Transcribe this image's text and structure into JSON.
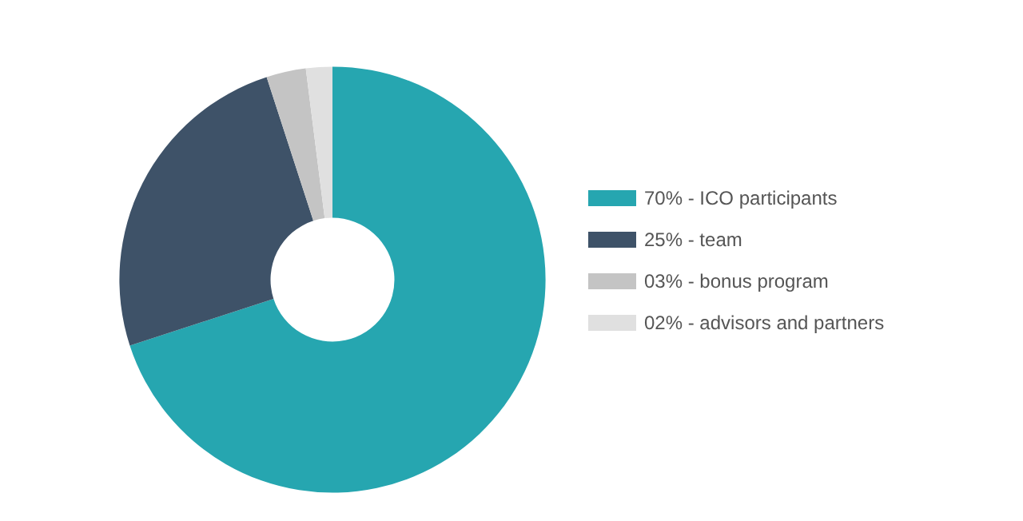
{
  "chart_data": {
    "type": "donut",
    "categories": [
      "70% - ICO participants",
      "25% - team",
      "03% - bonus program",
      "02% - advisors and partners"
    ],
    "values": [
      70,
      25,
      3,
      2
    ],
    "colors": [
      "#26a6b0",
      "#3e5268",
      "#c4c4c4",
      "#e0e0e0"
    ],
    "legend": "right"
  }
}
